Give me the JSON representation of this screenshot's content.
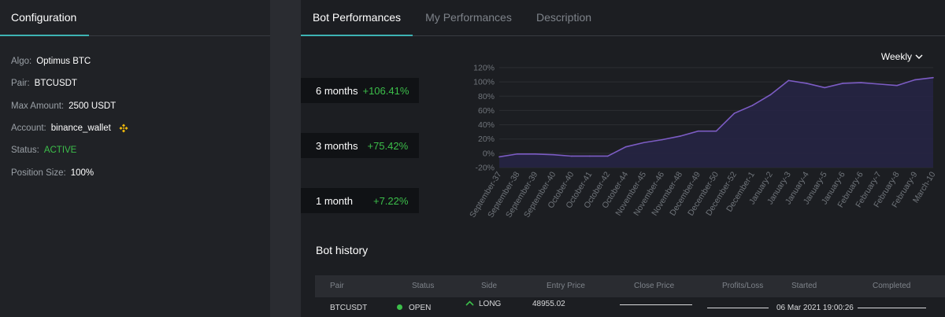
{
  "config": {
    "tab_label": "Configuration",
    "rows": [
      {
        "key": "Algo:",
        "value": "Optimus BTC"
      },
      {
        "key": "Pair:",
        "value": "BTCUSDT"
      },
      {
        "key": "Max Amount:",
        "value": "2500 USDT"
      },
      {
        "key": "Account:",
        "value": "binance_wallet"
      },
      {
        "key": "Status:",
        "value": "ACTIVE"
      },
      {
        "key": "Position Size:",
        "value": "100%"
      }
    ],
    "status_color": "#3cbf4a",
    "account_icon": "binance-icon"
  },
  "tabs": [
    {
      "label": "Bot Performances",
      "selected": true
    },
    {
      "label": "My Performances",
      "selected": false
    },
    {
      "label": "Description",
      "selected": false
    }
  ],
  "performance": [
    {
      "label": "6 months",
      "value": "+106.41%"
    },
    {
      "label": "3 months",
      "value": "+75.42%"
    },
    {
      "label": "1 month",
      "value": "+7.22%"
    }
  ],
  "period_select": {
    "label": "Weekly",
    "icon": "chevron-down-icon"
  },
  "chart_data": {
    "type": "area",
    "categories": [
      "September-37",
      "September-38",
      "September-39",
      "September-40",
      "October-40",
      "October-41",
      "October-42",
      "October-44",
      "November-45",
      "November-46",
      "November-48",
      "December-49",
      "December-50",
      "December-52",
      "December-1",
      "January-2",
      "January-3",
      "January-4",
      "January-5",
      "January-6",
      "February-6",
      "February-7",
      "February-8",
      "February-9",
      "March-10"
    ],
    "values": [
      -5,
      -1,
      -1,
      -2,
      -4,
      -4,
      -4,
      9,
      15,
      19,
      24,
      31,
      31,
      56,
      67,
      82,
      102,
      98,
      92,
      98,
      99,
      97,
      95,
      103,
      106
    ],
    "y_ticks": [
      "-20%",
      "0%",
      "20%",
      "40%",
      "60%",
      "80%",
      "100%",
      "120%"
    ],
    "ylim": [
      -20,
      120
    ],
    "line_color": "#7c5cc4",
    "fill_color": "#262444",
    "grid": true
  },
  "history": {
    "title": "Bot history",
    "columns": [
      "Pair",
      "Status",
      "Side",
      "Entry Price",
      "Close Price",
      "Profits/Loss",
      "Started",
      "Completed"
    ],
    "rows": [
      {
        "pair": "BTCUSDT",
        "status": "OPEN",
        "side": "LONG",
        "entry": "48955.02",
        "started": "06 Mar 2021 19:00:26"
      }
    ]
  }
}
